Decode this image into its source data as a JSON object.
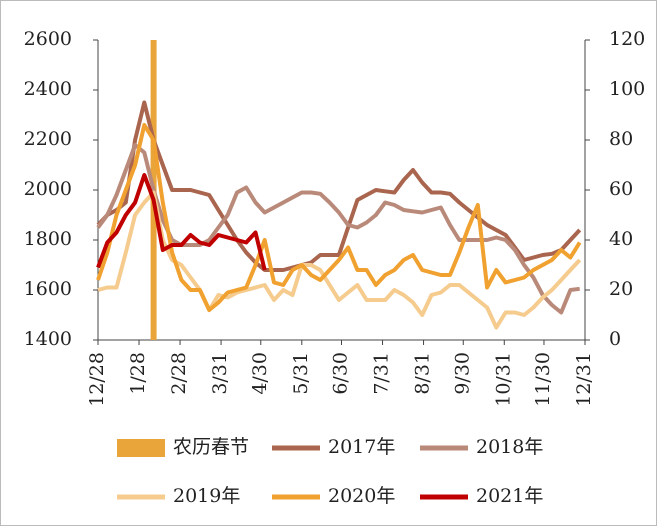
{
  "chart_data": {
    "type": "line",
    "xlim": [
      0,
      368
    ],
    "xticks": [
      {
        "value": 0,
        "label": "12/28"
      },
      {
        "value": 31,
        "label": "1/28"
      },
      {
        "value": 62,
        "label": "2/28"
      },
      {
        "value": 93,
        "label": "3/31"
      },
      {
        "value": 123,
        "label": "4/30"
      },
      {
        "value": 154,
        "label": "5/31"
      },
      {
        "value": 184,
        "label": "6/30"
      },
      {
        "value": 215,
        "label": "7/31"
      },
      {
        "value": 246,
        "label": "8/31"
      },
      {
        "value": 276,
        "label": "9/30"
      },
      {
        "value": 307,
        "label": "10/31"
      },
      {
        "value": 337,
        "label": "11/30"
      },
      {
        "value": 368,
        "label": "12/31"
      }
    ],
    "ylim": [
      1400,
      2600
    ],
    "yticks": [
      1400,
      1600,
      1800,
      2000,
      2200,
      2400,
      2600
    ],
    "y2lim": [
      0,
      120
    ],
    "y2ticks": [
      0,
      20,
      40,
      60,
      80,
      100,
      120
    ],
    "marker": {
      "name": "农历春节",
      "color": "#e9a53a",
      "x": 42,
      "value": 120,
      "axis": "y2"
    },
    "x": [
      0,
      7,
      14,
      21,
      28,
      35,
      42,
      49,
      56,
      63,
      70,
      77,
      84,
      91,
      98,
      105,
      112,
      119,
      126,
      133,
      140,
      147,
      154,
      161,
      168,
      175,
      182,
      189,
      196,
      203,
      210,
      217,
      224,
      231,
      238,
      245,
      252,
      259,
      266,
      273,
      280,
      287,
      294,
      301,
      308,
      315,
      322,
      329,
      336,
      343,
      350,
      357,
      364
    ],
    "series": [
      {
        "name": "2017年",
        "color": "#a9654e",
        "values": [
          1860,
          1900,
          1920,
          1950,
          2200,
          2350,
          2200,
          2100,
          2000,
          2000,
          2000,
          1990,
          1980,
          1920,
          1860,
          1800,
          1750,
          1710,
          1680,
          1680,
          1680,
          1690,
          1700,
          1710,
          1740,
          1740,
          1740,
          1850,
          1960,
          1980,
          2000,
          1995,
          1990,
          2040,
          2080,
          2030,
          1990,
          1990,
          1985,
          1950,
          1920,
          1890,
          1860,
          1840,
          1820,
          1770,
          1720,
          1730,
          1740,
          1745,
          1760,
          1800,
          1840
        ]
      },
      {
        "name": "2018年",
        "color": "#b98a7a",
        "values": [
          1850,
          1900,
          1980,
          2080,
          2180,
          2150,
          2000,
          1880,
          1800,
          1780,
          1780,
          1780,
          1800,
          1850,
          1900,
          1990,
          2010,
          1950,
          1910,
          1930,
          1950,
          1970,
          1990,
          1990,
          1985,
          1950,
          1910,
          1860,
          1850,
          1870,
          1900,
          1950,
          1940,
          1920,
          1915,
          1910,
          1920,
          1930,
          1860,
          1800,
          1800,
          1800,
          1800,
          1810,
          1800,
          1760,
          1700,
          1650,
          1580,
          1540,
          1510,
          1600,
          1605
        ]
      },
      {
        "name": "2019年",
        "color": "#f5cb8e",
        "values": [
          1600,
          1610,
          1610,
          1750,
          1900,
          1950,
          1990,
          1800,
          1720,
          1700,
          1650,
          1600,
          1520,
          1580,
          1570,
          1590,
          1600,
          1610,
          1620,
          1560,
          1600,
          1580,
          1700,
          1700,
          1680,
          1620,
          1560,
          1590,
          1620,
          1560,
          1560,
          1560,
          1600,
          1580,
          1550,
          1500,
          1580,
          1590,
          1620,
          1620,
          1590,
          1560,
          1530,
          1450,
          1510,
          1510,
          1500,
          1530,
          1570,
          1600,
          1640,
          1680,
          1720
        ]
      },
      {
        "name": "2020年",
        "color": "#f0a12f",
        "values": [
          1640,
          1750,
          1900,
          2000,
          2100,
          2260,
          2200,
          1950,
          1750,
          1640,
          1600,
          1600,
          1520,
          1550,
          1590,
          1600,
          1610,
          1700,
          1800,
          1630,
          1620,
          1680,
          1700,
          1660,
          1640,
          1680,
          1720,
          1770,
          1680,
          1680,
          1620,
          1660,
          1680,
          1720,
          1740,
          1680,
          1670,
          1660,
          1660,
          1750,
          1850,
          1940,
          1610,
          1680,
          1630,
          1640,
          1650,
          1680,
          1700,
          1720,
          1760,
          1730,
          1790
        ]
      },
      {
        "name": "2021年",
        "color": "#c00000",
        "values": [
          1690,
          1790,
          1830,
          1900,
          1950,
          2060,
          1960,
          1760,
          1780,
          1780,
          1820,
          1790,
          1780,
          1820,
          1810,
          1800,
          1790,
          1830,
          1680,
          null,
          null,
          null,
          null,
          null,
          null,
          null,
          null,
          null,
          null,
          null,
          null,
          null,
          null,
          null,
          null,
          null,
          null,
          null,
          null,
          null,
          null,
          null,
          null,
          null,
          null,
          null,
          null,
          null,
          null,
          null,
          null,
          null,
          null
        ]
      }
    ]
  }
}
